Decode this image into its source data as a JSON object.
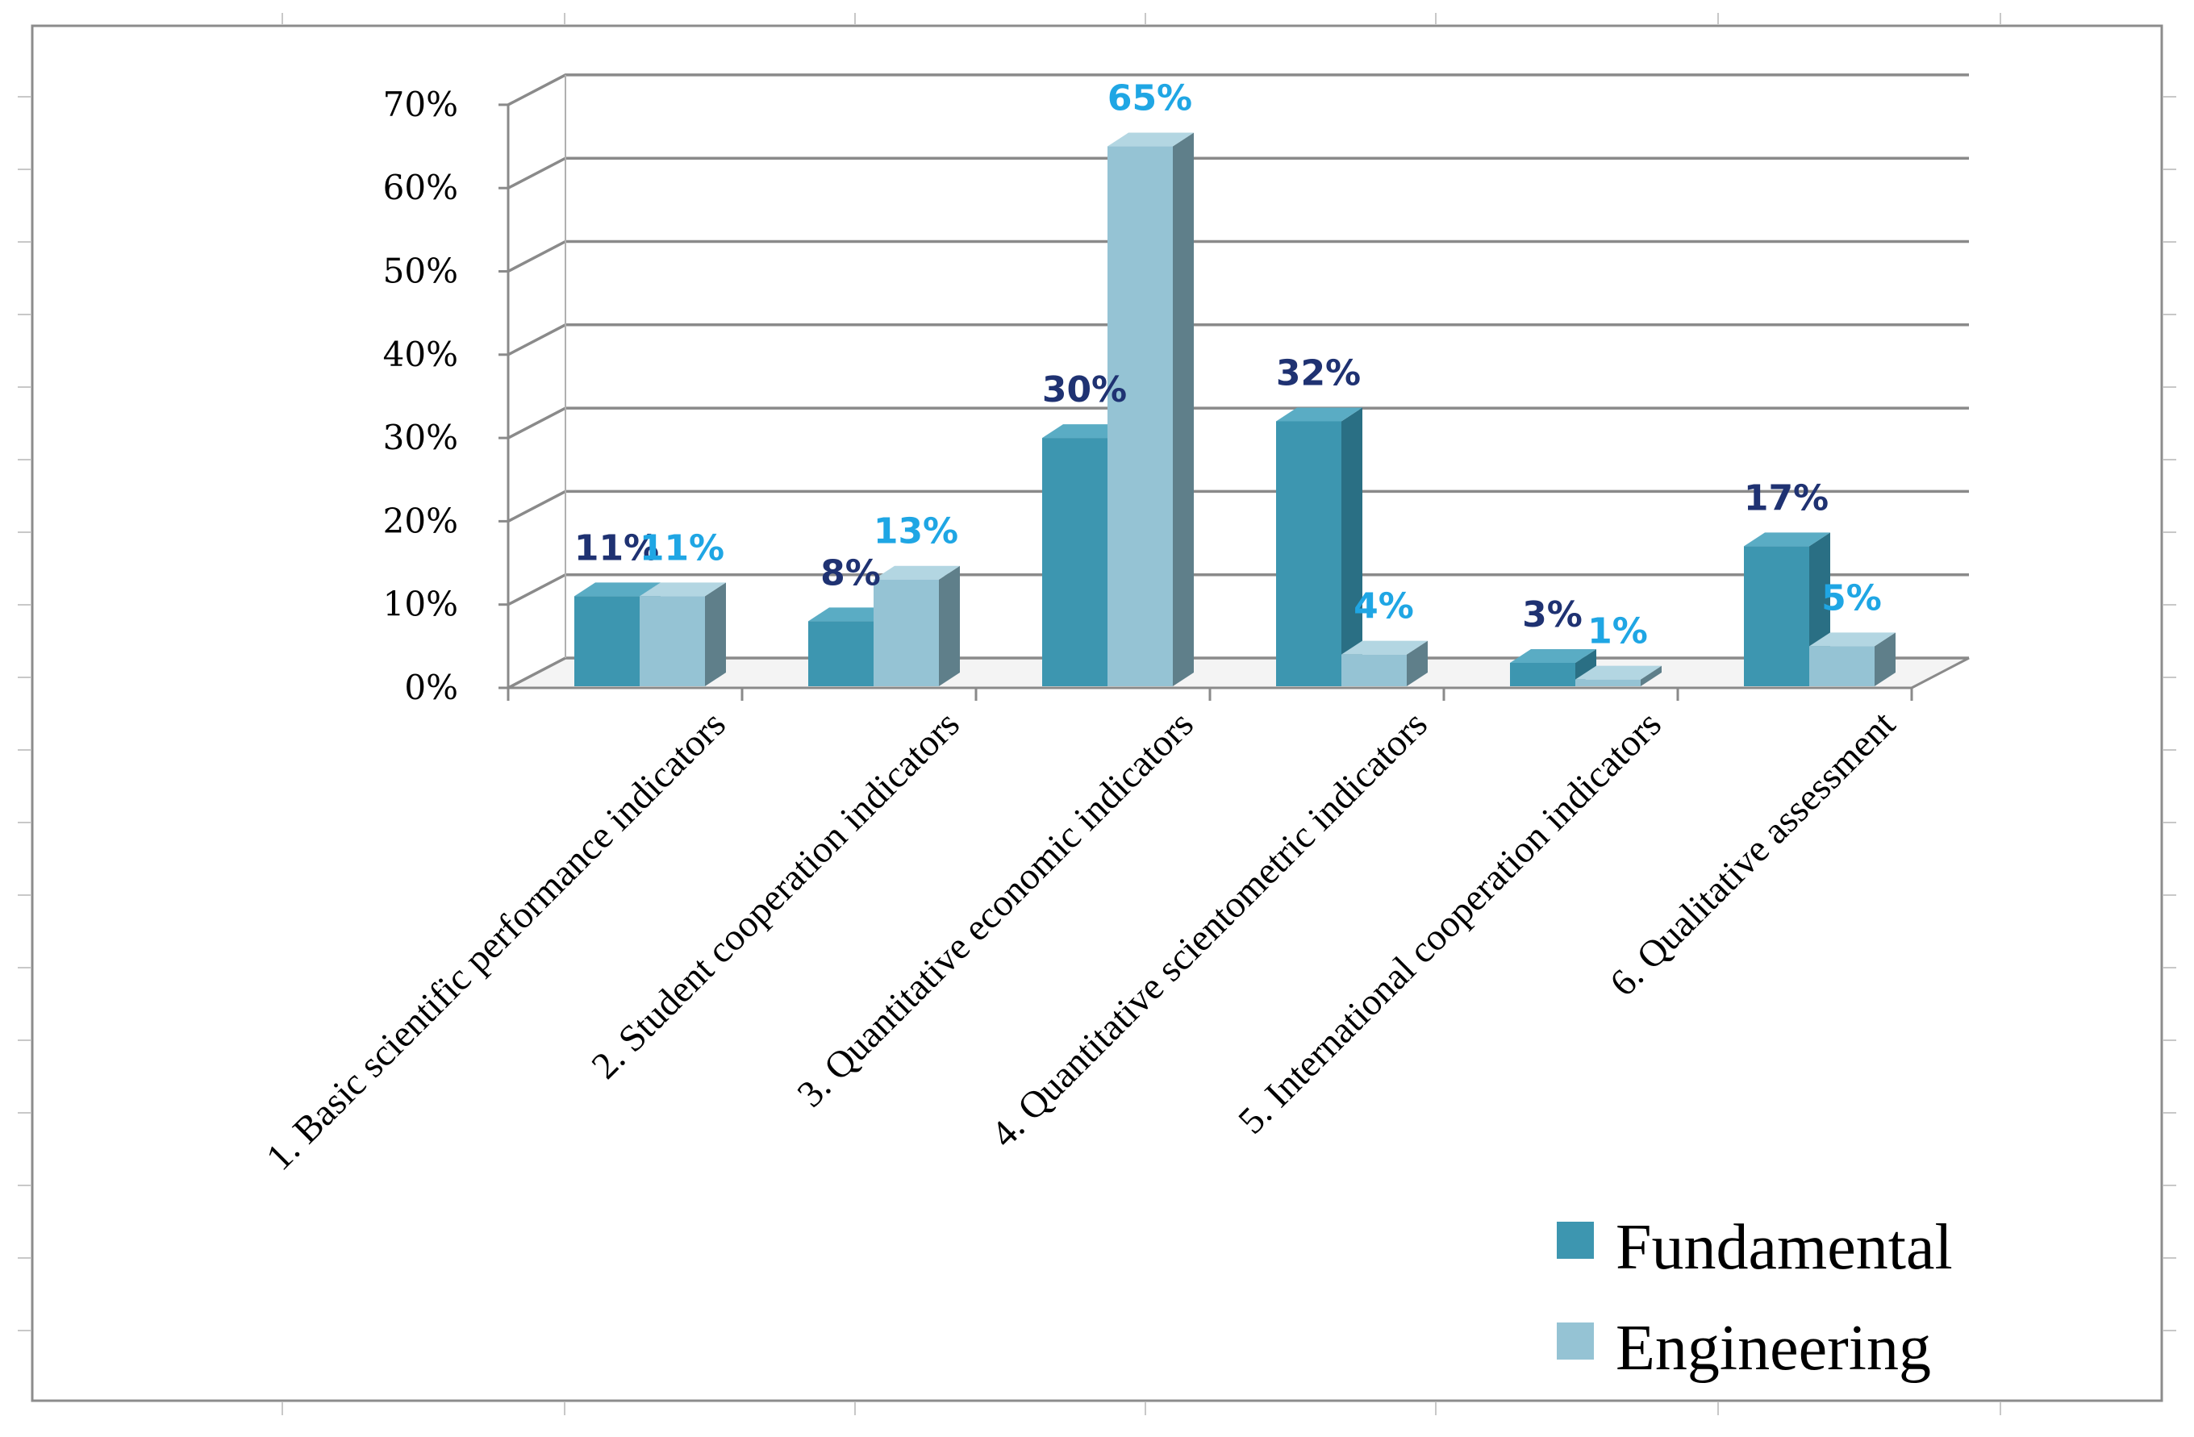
{
  "chart_data": {
    "type": "bar",
    "categories": [
      "1. Basic scientific performance indicators",
      "2. Student cooperation indicators",
      "3. Quantitative economic indicators",
      "4. Quantitative scientometric indicators",
      "5. International cooperation indicators",
      "6. Qualitative assessment"
    ],
    "series": [
      {
        "name": "Fundamental",
        "values": [
          11,
          8,
          30,
          32,
          3,
          17
        ],
        "labels": [
          "11%",
          "8%",
          "30%",
          "32%",
          "3%",
          "17%"
        ],
        "color_front": "#3d96b0",
        "color_side": "#2a6f84",
        "color_top": "#5aacc4",
        "label_color": "#1f3272"
      },
      {
        "name": "Engineering",
        "values": [
          11,
          13,
          65,
          4,
          1,
          5
        ],
        "labels": [
          "11%",
          "13%",
          "65%",
          "4%",
          "1%",
          "5%"
        ],
        "color_front": "#95c3d4",
        "color_side": "#5f7f8a",
        "color_top": "#b3d6e2",
        "label_color": "#1fa6e4"
      }
    ],
    "y_ticks": [
      "0%",
      "10%",
      "20%",
      "30%",
      "40%",
      "50%",
      "60%",
      "70%"
    ],
    "ylim": [
      0,
      70
    ],
    "title": "",
    "xlabel": "",
    "ylabel": "",
    "grid": true,
    "legend_position": "bottom-right",
    "style": "3d-clustered-column"
  }
}
